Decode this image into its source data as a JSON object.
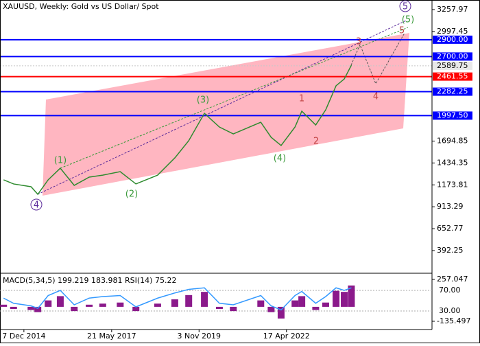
{
  "chart_data": [
    {
      "type": "line",
      "title": "XAUUSD, Weekly:  Gold vs US Dollar/ Spot",
      "x": [
        2014.36,
        2014.64,
        2015.13,
        2015.32,
        2015.61,
        2015.95,
        2016.34,
        2016.76,
        2017.14,
        2017.63,
        2018.07,
        2018.68,
        2019.16,
        2019.55,
        2019.99,
        2020.41,
        2020.8,
        2021.57,
        2021.86,
        2022.14,
        2022.53,
        2022.72,
        2023.11,
        2023.39,
        2023.68,
        2023.91,
        2024.11
      ],
      "series": [
        {
          "name": "XAUUSD",
          "color": "#2e8b2e",
          "values": [
            1234,
            1185,
            1152,
            1062,
            1234,
            1372,
            1168,
            1266,
            1290,
            1331,
            1185,
            1290,
            1494,
            1699,
            2025,
            1862,
            1780,
            1919,
            1740,
            1642,
            1862,
            2050,
            1886,
            2066,
            2352,
            2433,
            2597
          ]
        }
      ],
      "xlim": [
        2014.26,
        2026.37
      ],
      "xticks": [
        {
          "value": 2014.93,
          "label": "7 Dec 2014"
        },
        {
          "value": 2017.39,
          "label": "21 May 2017"
        },
        {
          "value": 2019.84,
          "label": "3 Nov 2019"
        },
        {
          "value": 2022.29,
          "label": "17 Apr 2022"
        }
      ],
      "ylim": [
        131.4,
        3372.3
      ],
      "yticks": [
        3257.97,
        2997.45,
        1694.85,
        1434.35,
        1173.81,
        913.29,
        652.77,
        392.25
      ],
      "levels": [
        {
          "value": 2900,
          "label": "2900.00",
          "color": "#0000ff"
        },
        {
          "value": 2700,
          "label": "2700.00",
          "color": "#0000ff"
        },
        {
          "value": 2461.55,
          "color": "#ff0000"
        },
        {
          "value": 2282.25,
          "color": "#0000ff"
        },
        {
          "value": 1997.5,
          "label": "1997.50",
          "color": "#0000ff"
        }
      ],
      "last_price": 2589.75,
      "annotations": [
        "4",
        "(1)",
        "(2)",
        "(3)",
        "(4)",
        "(5)",
        "1",
        "2",
        "3",
        "4",
        "5",
        "5"
      ],
      "grid": false
    },
    {
      "type": "bar",
      "title": "MACD(5,34,5) 199.219 183.981 RSI(14) 75.22",
      "x": [
        2014.36,
        2014.64,
        2015.13,
        2015.32,
        2015.61,
        2015.95,
        2016.34,
        2016.76,
        2017.14,
        2017.63,
        2018.07,
        2018.68,
        2019.16,
        2019.55,
        2019.99,
        2020.41,
        2020.8,
        2021.57,
        2021.86,
        2022.14,
        2022.53,
        2022.72,
        2023.11,
        2023.39,
        2023.68,
        2023.91,
        2024.11
      ],
      "series": [
        {
          "name": "MACD",
          "color": "#8b1a8b",
          "values": [
            20,
            -20,
            -30,
            -50,
            60,
            100,
            -40,
            20,
            30,
            40,
            -40,
            30,
            70,
            110,
            140,
            -20,
            -40,
            60,
            -50,
            -110,
            60,
            100,
            -30,
            40,
            150,
            140,
            200
          ]
        },
        {
          "name": "RSI",
          "color": "#3399ff",
          "axis": "y2",
          "values": [
            55,
            45,
            40,
            35,
            60,
            70,
            42,
            55,
            58,
            60,
            38,
            55,
            65,
            72,
            75,
            45,
            42,
            60,
            40,
            32,
            60,
            68,
            45,
            58,
            75,
            70,
            75
          ]
        }
      ],
      "ylim": [
        -200,
        302
      ],
      "yticks": [
        257.047,
        -135.497
      ],
      "y2lim": [
        -3.33,
        100.67
      ],
      "y2ticks": [
        {
          "value": 70,
          "label": "70.00"
        },
        {
          "value": 30,
          "label": "30.00"
        }
      ]
    }
  ]
}
